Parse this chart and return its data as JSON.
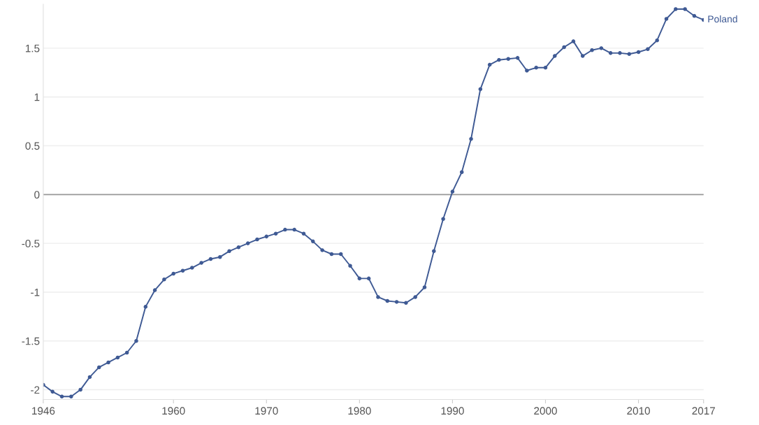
{
  "chart_data": {
    "type": "line",
    "x": [
      1946,
      1947,
      1948,
      1949,
      1950,
      1951,
      1952,
      1953,
      1954,
      1955,
      1956,
      1957,
      1958,
      1959,
      1960,
      1961,
      1962,
      1963,
      1964,
      1965,
      1966,
      1967,
      1968,
      1969,
      1970,
      1971,
      1972,
      1973,
      1974,
      1975,
      1976,
      1977,
      1978,
      1979,
      1980,
      1981,
      1982,
      1983,
      1984,
      1985,
      1986,
      1987,
      1988,
      1989,
      1990,
      1991,
      1992,
      1993,
      1994,
      1995,
      1996,
      1997,
      1998,
      1999,
      2000,
      2001,
      2002,
      2003,
      2004,
      2005,
      2006,
      2007,
      2008,
      2009,
      2010,
      2011,
      2012,
      2013,
      2014,
      2015,
      2016,
      2017
    ],
    "series": [
      {
        "name": "Poland",
        "color": "#3f5a94",
        "values": [
          -1.95,
          -2.02,
          -2.07,
          -2.07,
          -2.0,
          -1.87,
          -1.77,
          -1.72,
          -1.67,
          -1.62,
          -1.5,
          -1.15,
          -0.98,
          -0.87,
          -0.81,
          -0.78,
          -0.75,
          -0.7,
          -0.66,
          -0.64,
          -0.58,
          -0.54,
          -0.5,
          -0.46,
          -0.43,
          -0.4,
          -0.36,
          -0.36,
          -0.4,
          -0.48,
          -0.57,
          -0.61,
          -0.61,
          -0.73,
          -0.86,
          -0.86,
          -1.05,
          -1.09,
          -1.1,
          -1.11,
          -1.05,
          -0.95,
          -0.58,
          -0.25,
          0.03,
          0.23,
          0.57,
          1.08,
          1.33,
          1.38,
          1.39,
          1.4,
          1.27,
          1.3,
          1.3,
          1.42,
          1.51,
          1.57,
          1.42,
          1.48,
          1.5,
          1.45,
          1.45,
          1.44,
          1.46,
          1.49,
          1.58,
          1.8,
          1.9,
          1.9,
          1.83,
          1.79
        ]
      }
    ],
    "xlim": [
      1946,
      2017
    ],
    "xticks": [
      1946,
      1960,
      1970,
      1980,
      1990,
      2000,
      2010,
      2017
    ],
    "ylim": [
      -2.1,
      1.95
    ],
    "yticks": [
      -2,
      -1.5,
      -1,
      -0.5,
      0,
      0.5,
      1,
      1.5
    ],
    "ref_lines": [
      {
        "axis": "y",
        "value": 0,
        "color": "#999999"
      }
    ],
    "grid": "y",
    "marker": "circle",
    "line_style": "solid"
  }
}
